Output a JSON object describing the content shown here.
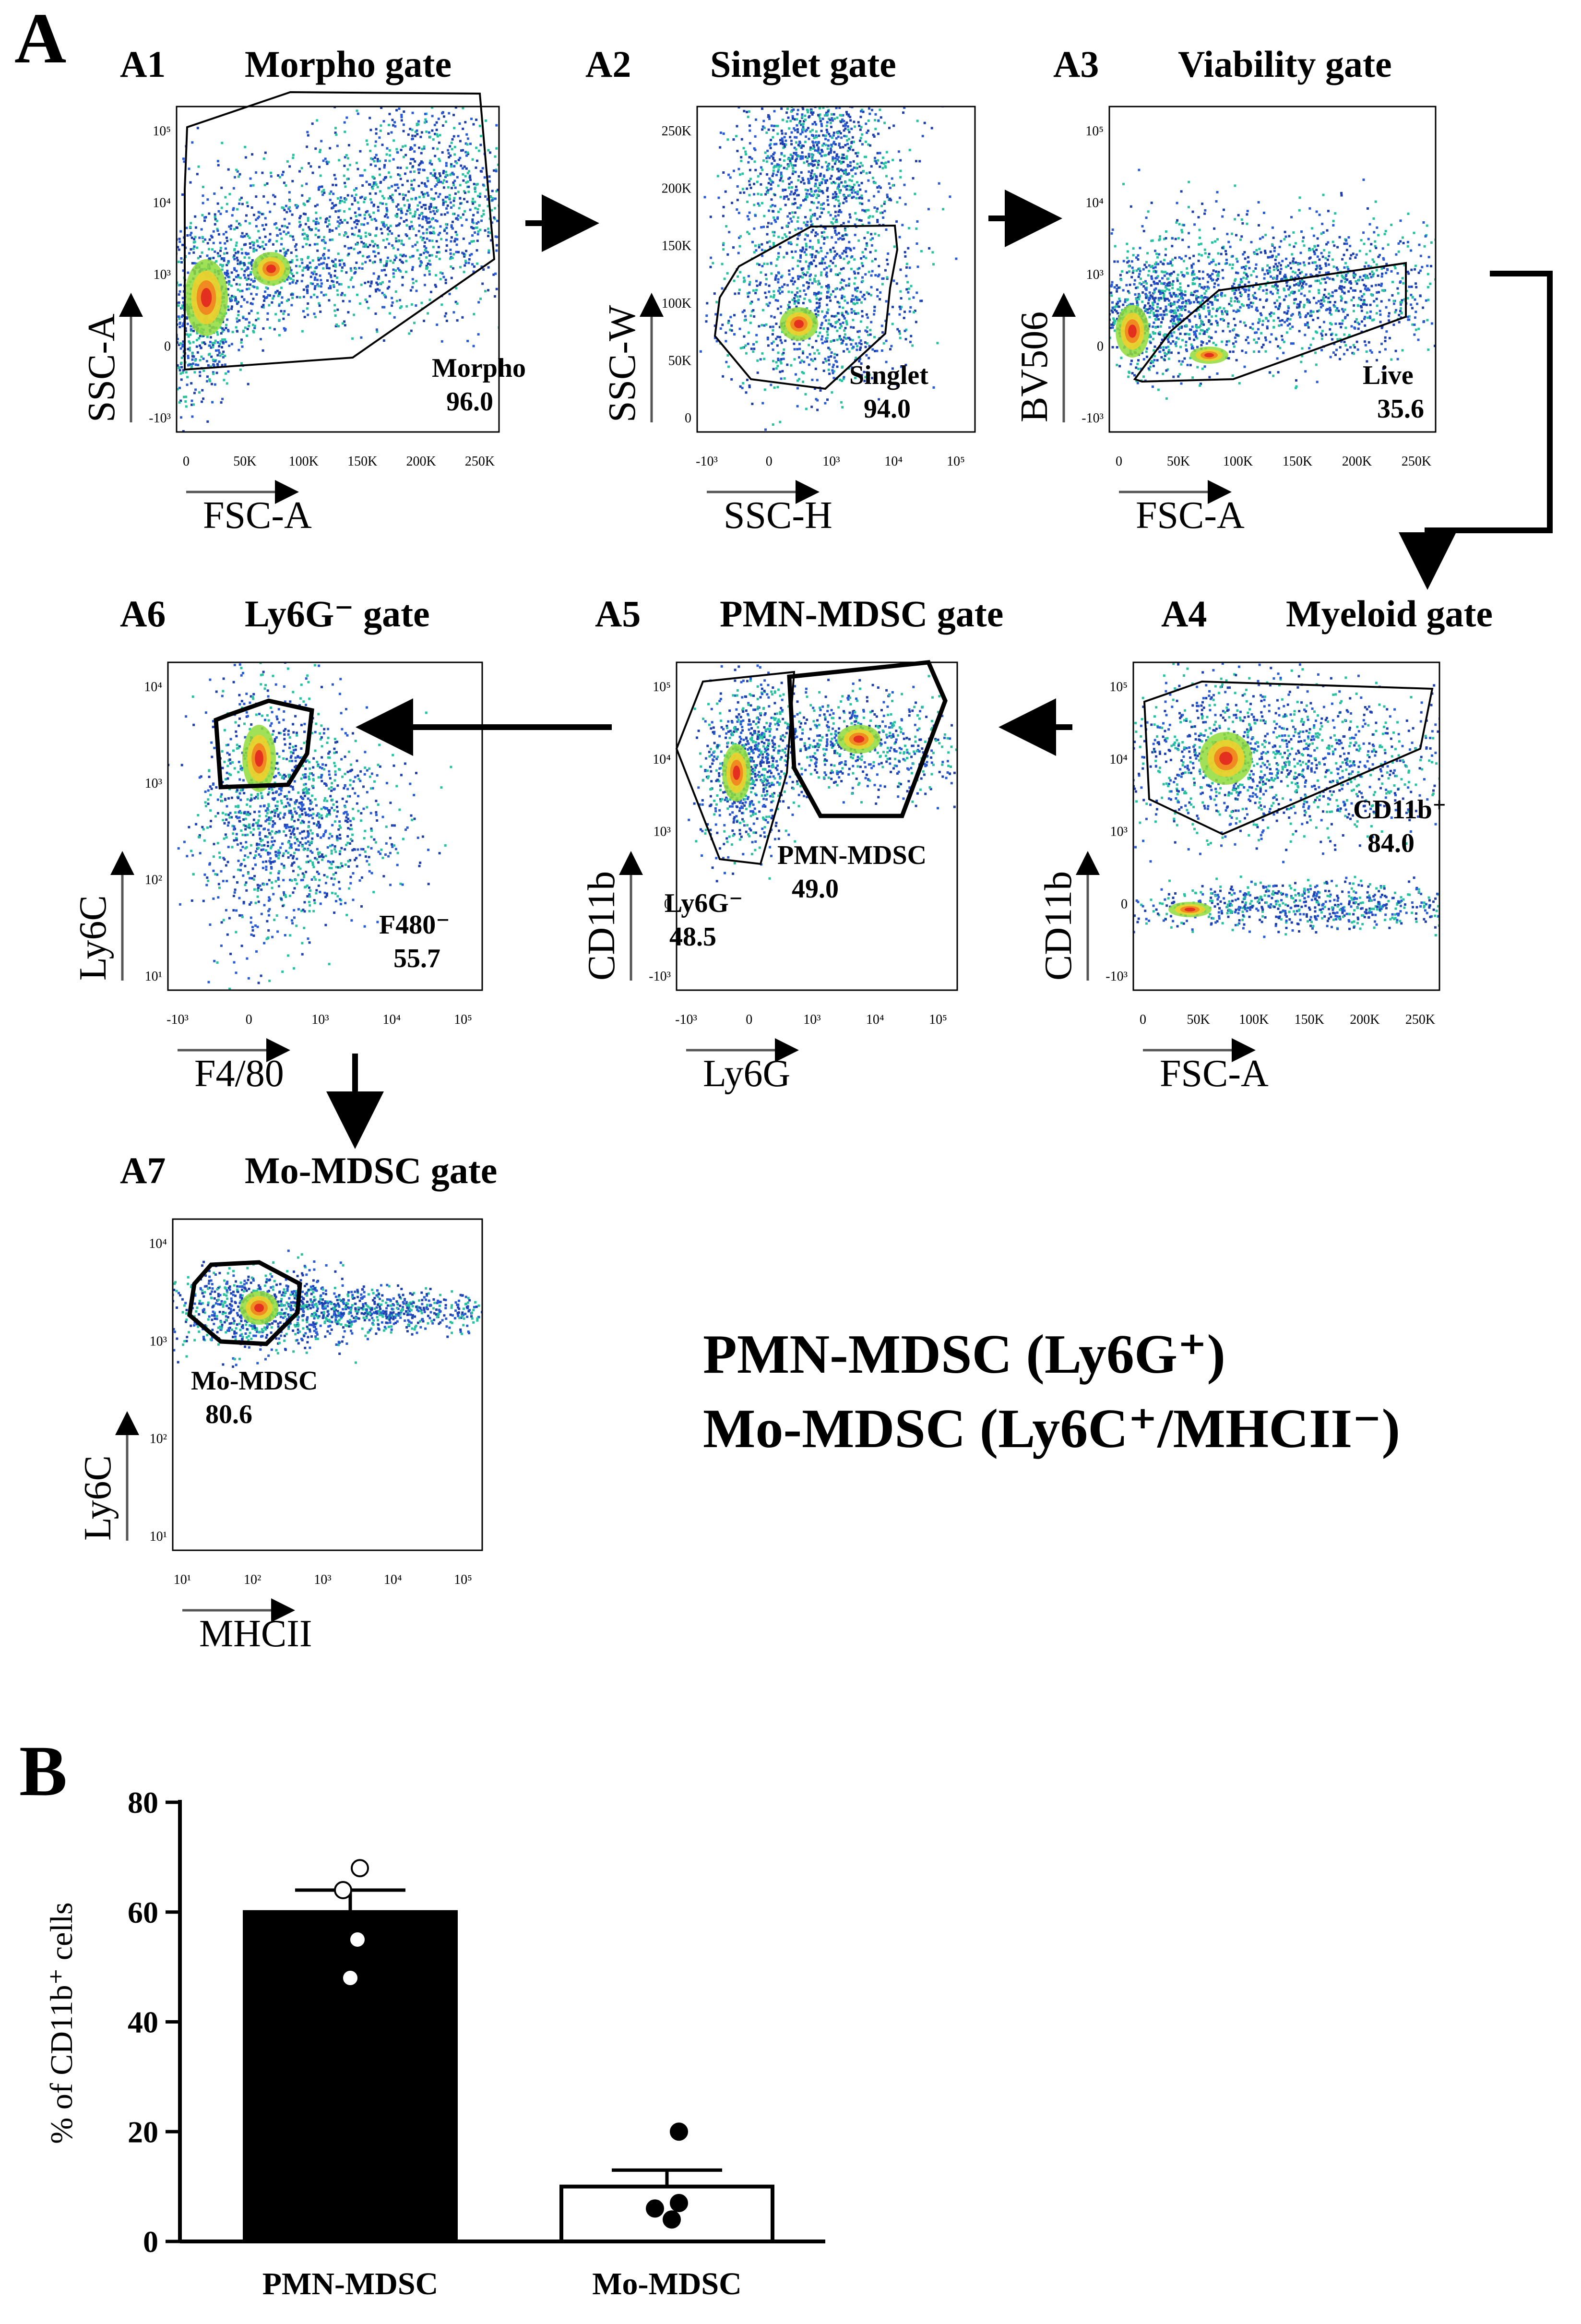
{
  "panel_letters": {
    "a": "A",
    "b": "B"
  },
  "plots": [
    {
      "id": "A1",
      "tag": "A1",
      "title": "Morpho gate",
      "xlabel": "FSC-A",
      "ylabel": "SSC-A",
      "xticks": [
        "0",
        "50K",
        "100K",
        "150K",
        "200K",
        "250K"
      ],
      "yticks": [
        "-10³",
        "0",
        "10³",
        "10⁴",
        "10⁵"
      ],
      "gate_name": "Morpho",
      "gate_value": "96.0"
    },
    {
      "id": "A2",
      "tag": "A2",
      "title": "Singlet gate",
      "xlabel": "SSC-H",
      "ylabel": "SSC-W",
      "xticks": [
        "-10³",
        "0",
        "10³",
        "10⁴",
        "10⁵"
      ],
      "yticks": [
        "0",
        "50K",
        "100K",
        "150K",
        "200K",
        "250K"
      ],
      "gate_name": "Singlet",
      "gate_value": "94.0"
    },
    {
      "id": "A3",
      "tag": "A3",
      "title": "Viability gate",
      "xlabel": "FSC-A",
      "ylabel": "BV506",
      "xticks": [
        "0",
        "50K",
        "100K",
        "150K",
        "200K",
        "250K"
      ],
      "yticks": [
        "-10³",
        "0",
        "10³",
        "10⁴",
        "10⁵"
      ],
      "gate_name": "Live",
      "gate_value": "35.6"
    },
    {
      "id": "A4",
      "tag": "A4",
      "title": "Myeloid gate",
      "xlabel": "FSC-A",
      "ylabel": "CD11b",
      "xticks": [
        "0",
        "50K",
        "100K",
        "150K",
        "200K",
        "250K"
      ],
      "yticks": [
        "-10³",
        "0",
        "10³",
        "10⁴",
        "10⁵"
      ],
      "gate_name": "CD11b⁺",
      "gate_value": "84.0"
    },
    {
      "id": "A5",
      "tag": "A5",
      "title": "PMN-MDSC gate",
      "xlabel": "Ly6G",
      "ylabel": "CD11b",
      "xticks": [
        "-10³",
        "0",
        "10³",
        "10⁴",
        "10⁵"
      ],
      "yticks": [
        "-10³",
        "0",
        "10³",
        "10⁴",
        "10⁵"
      ],
      "gate_name": "PMN-MDSC",
      "gate_value": "49.0",
      "gate2_name": "Ly6G⁻",
      "gate2_value": "48.5"
    },
    {
      "id": "A6",
      "tag": "A6",
      "title": "Ly6G⁻ gate",
      "xlabel": "F4/80",
      "ylabel": "Ly6C",
      "xticks": [
        "-10³",
        "0",
        "10³",
        "10⁴",
        "10⁵"
      ],
      "yticks": [
        "10¹",
        "10²",
        "10³",
        "10⁴"
      ],
      "gate_name": "F480⁻",
      "gate_value": "55.7"
    },
    {
      "id": "A7",
      "tag": "A7",
      "title": "Mo-MDSC gate",
      "xlabel": "MHCII",
      "ylabel": "Ly6C",
      "xticks": [
        "10¹",
        "10²",
        "10³",
        "10⁴",
        "10⁵"
      ],
      "yticks": [
        "10¹",
        "10²",
        "10³",
        "10⁴"
      ],
      "gate_name": "Mo-MDSC",
      "gate_value": "80.6"
    }
  ],
  "summary": {
    "line1": "PMN-MDSC (Ly6G⁺)",
    "line2": "Mo-MDSC (Ly6C⁺/MHCII⁻)"
  },
  "chart_data": {
    "type": "bar",
    "categories": [
      "PMN-MDSC",
      "Mo-MDSC"
    ],
    "values": [
      60,
      10
    ],
    "errors": [
      4,
      3
    ],
    "points": [
      [
        68,
        64,
        55,
        48
      ],
      [
        20,
        7,
        6,
        4
      ]
    ],
    "ylabel": "% of CD11b⁺ cells",
    "ylim": [
      0,
      80
    ],
    "yticks": [
      "0",
      "20",
      "40",
      "60",
      "80"
    ],
    "bar_fills": [
      "#000000",
      "#ffffff"
    ]
  }
}
